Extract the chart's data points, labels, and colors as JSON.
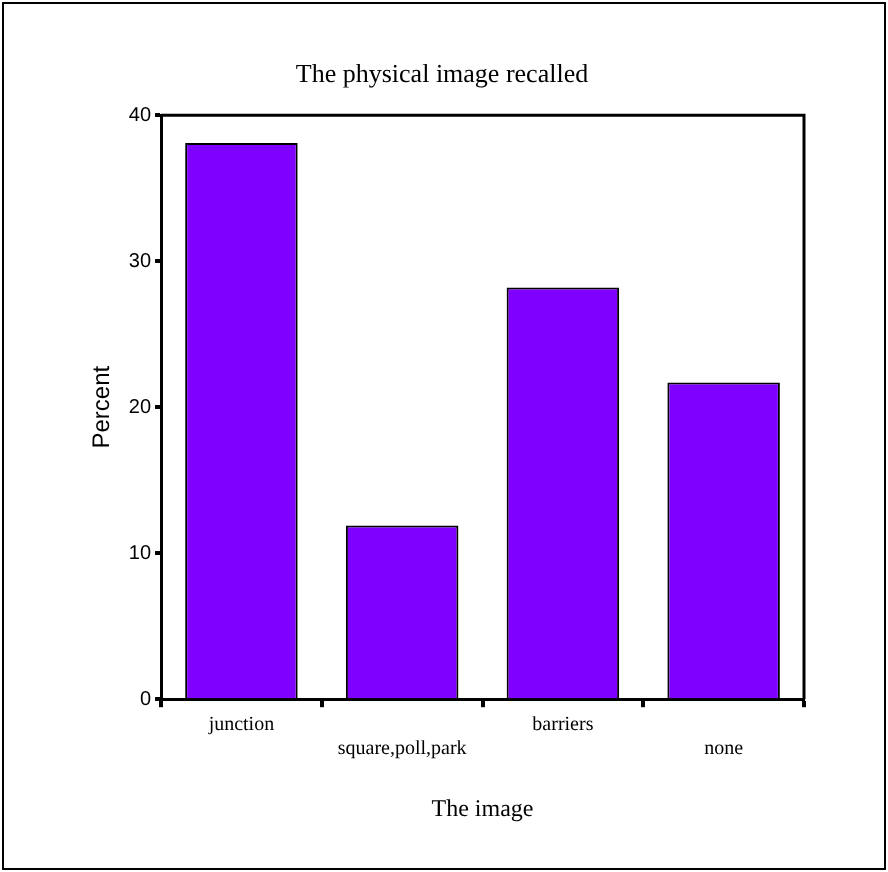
{
  "chart_data": {
    "type": "bar",
    "title": "The physical image recalled",
    "xlabel": "The image",
    "ylabel": "Percent",
    "categories": [
      "junction",
      "square,poll,park",
      "barriers",
      "none"
    ],
    "values": [
      38.1,
      11.9,
      28.2,
      21.7
    ],
    "color": "#8000ff",
    "ylim": [
      0,
      40
    ],
    "yticks": [
      0,
      10,
      20,
      30,
      40
    ],
    "grid": false,
    "legend": false
  }
}
